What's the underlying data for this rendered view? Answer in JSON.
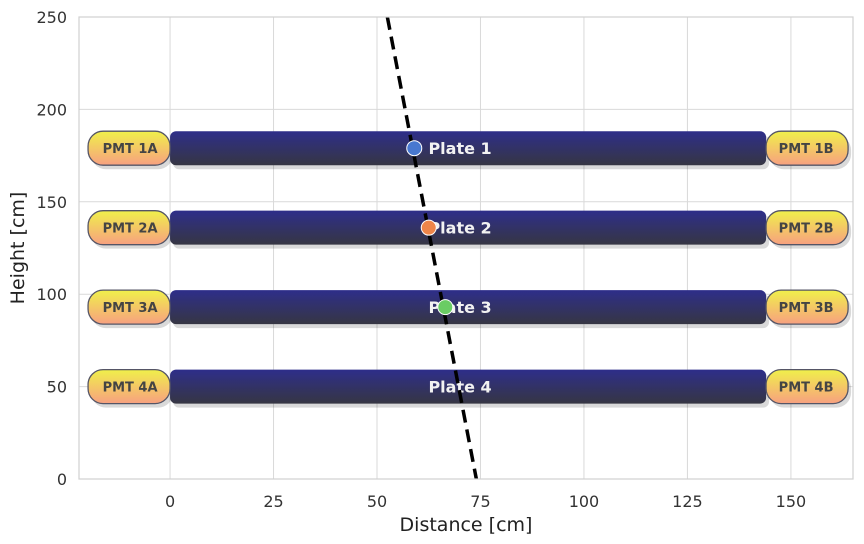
{
  "chart_data": {
    "type": "scatter",
    "title": "",
    "xlabel": "Distance [cm]",
    "ylabel": "Height [cm]",
    "xlim": [
      -22,
      165
    ],
    "ylim": [
      0,
      250
    ],
    "xticks": [
      0,
      25,
      50,
      75,
      100,
      125,
      150
    ],
    "yticks": [
      0,
      50,
      100,
      150,
      200,
      250
    ],
    "grid": true,
    "plates": [
      {
        "label": "Plate 1",
        "y": 179,
        "x_start": 0,
        "x_end": 144,
        "pmt_left": "PMT 1A",
        "pmt_right": "PMT 1B"
      },
      {
        "label": "Plate 2",
        "y": 136,
        "x_start": 0,
        "x_end": 144,
        "pmt_left": "PMT 2A",
        "pmt_right": "PMT 2B"
      },
      {
        "label": "Plate 3",
        "y": 93,
        "x_start": 0,
        "x_end": 144,
        "pmt_left": "PMT 3A",
        "pmt_right": "PMT 3B"
      },
      {
        "label": "Plate 4",
        "y": 50,
        "x_start": 0,
        "x_end": 144,
        "pmt_left": "PMT 4A",
        "pmt_right": "PMT 4B"
      }
    ],
    "hits": [
      {
        "x": 59,
        "y": 179,
        "color": "#4878d0"
      },
      {
        "x": 62.5,
        "y": 136,
        "color": "#ee854a"
      },
      {
        "x": 66.5,
        "y": 93,
        "color": "#6acc64"
      }
    ],
    "track": {
      "points": [
        [
          52.5,
          250
        ],
        [
          74,
          0
        ]
      ],
      "color": "#000000",
      "style": "dashed"
    },
    "colors": {
      "plate_top": "#2e2e8a",
      "plate_bottom": "#363643",
      "pmt_top": "#f0f04a",
      "pmt_bottom": "#f7a080",
      "grid": "#d9d9d9"
    }
  }
}
